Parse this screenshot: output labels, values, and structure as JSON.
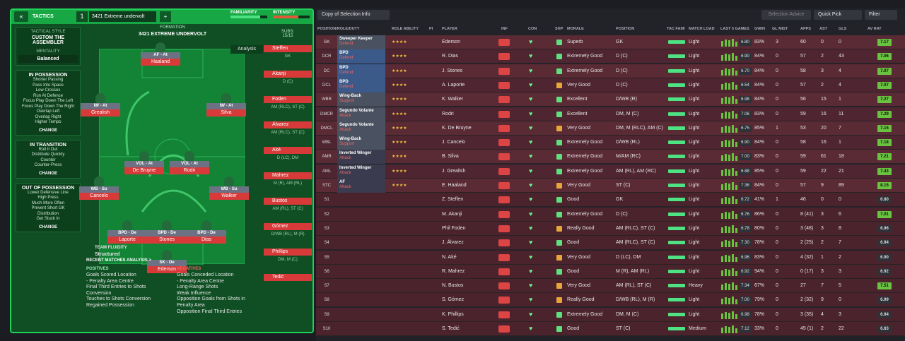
{
  "topbar": {
    "tactics": "TACTICS",
    "slot": "1",
    "name": "3421 Extreme undervolt",
    "familiarity": "FAMILIARITY",
    "intensity": "INTENSITY"
  },
  "side": {
    "style_h": "TACTICAL STYLE",
    "style": "CUSTOM THE ASSEMBLER",
    "ment_h": "MENTALITY",
    "ment": "Balanced",
    "poss_h": "IN POSSESSION",
    "poss": [
      "Shorter Passing",
      "Pass Into Space",
      "Low Crosses",
      "Run At Defence",
      "Focus Play Down The Left",
      "Focus Play Down The Right",
      "Overlap Left",
      "Overlap Right",
      "Higher Tempo"
    ],
    "trans_h": "IN TRANSITION",
    "trans": [
      "Roll It Out",
      "Distribute Quickly",
      "Counter",
      "Counter-Press"
    ],
    "oop_h": "OUT OF POSSESSION",
    "oop": [
      "Lower Defensive Line",
      "High Press",
      "Much More Often",
      "Prevent Short GK",
      "Distribution",
      "Get Stuck In"
    ],
    "change": "CHANGE"
  },
  "pitch": {
    "fh": "FORMATION",
    "fn": "3421 EXTREME UNDERVOLT",
    "analysis": "Analysis",
    "fluidity": "TEAM FLUIDITY",
    "fluid_v": "Structured",
    "nodes": [
      {
        "role": "AF - At",
        "name": "Haaland"
      },
      {
        "role": "IW - At",
        "name": "Grealish"
      },
      {
        "role": "IW - At",
        "name": "Silva"
      },
      {
        "role": "VOL - At",
        "name": "De Bruyne"
      },
      {
        "role": "VOL - At",
        "name": "Rodri"
      },
      {
        "role": "WB - Su",
        "name": "Cancelo"
      },
      {
        "role": "WB - Su",
        "name": "Walker"
      },
      {
        "role": "BPD - De",
        "name": "Laporte"
      },
      {
        "role": "BPD - De",
        "name": "Stones"
      },
      {
        "role": "BPD - De",
        "name": "Dias"
      },
      {
        "role": "SK - De",
        "name": "Ederson"
      }
    ]
  },
  "subs": {
    "label": "SUBS:",
    "count": "15/15",
    "list": [
      {
        "n": "Steffen",
        "p": "GK"
      },
      {
        "n": "Akanji",
        "p": "D (C)"
      },
      {
        "n": "Foden",
        "p": "AM (RLC), ST (C)"
      },
      {
        "n": "Álvarez",
        "p": "AM (RLC), ST (C)"
      },
      {
        "n": "Aké",
        "p": "D (LC), DM"
      },
      {
        "n": "Mahrez",
        "p": "M (R), AM (RL)"
      },
      {
        "n": "Bustos",
        "p": "AM (RL), ST (C)"
      },
      {
        "n": "Gómez",
        "p": "D/WB (RL), M (R)"
      },
      {
        "n": "Phillips",
        "p": "DM, M (C)"
      },
      {
        "n": "Tedić",
        "p": ""
      }
    ]
  },
  "analysis": {
    "title": "RECENT MATCHES ANALYSIS >",
    "pos_h": "POSITIVES",
    "neg_h": "NEGATIVES",
    "pos": [
      "Goals Scored Location",
      "- Penalty Area Centre",
      "Final Third Entries to Shots Conversion",
      "Touches to Shots Conversion",
      "Regained Possession"
    ],
    "neg": [
      "Goals Conceded Location",
      "- Penalty Area Centre",
      "Long-Range Shots",
      "Weak Influence",
      "Opposition Goals from Shots in Penalty Area",
      "Opposition Final Third Entries"
    ]
  },
  "right_top": {
    "copy": "Copy of Selection Info",
    "advice": "Selection Advice",
    "quick": "Quick Pick",
    "filter": "Filter"
  },
  "headers": [
    "POSITION/ROLE/DUTY",
    "ROLE ABILITY",
    "PI",
    "PLAYER",
    "INF",
    "CON",
    "SHP",
    "MORALE",
    "POSITION",
    "TAC FAMI",
    "MATCH LOAD",
    "LAST 5 GAMES",
    "GWIN",
    "GL MIST",
    "APPS",
    "AST",
    "GLS",
    "AV RAT"
  ],
  "rows": [
    {
      "slot": "GK",
      "role": "Sweeper Keeper",
      "duty": "Defend",
      "player": "Ederson",
      "morale": "Superb",
      "pos": "GK",
      "load": "Light",
      "rat": "6.80",
      "gwin": "83%",
      "glm": "3",
      "apps": "60",
      "ast": "0",
      "gls": "0",
      "av": "7.17"
    },
    {
      "slot": "DCR",
      "role": "BPD",
      "duty": "Defend",
      "player": "R. Dias",
      "morale": "Extremely Good",
      "pos": "D (C)",
      "load": "Light",
      "rat": "6.90",
      "gwin": "84%",
      "glm": "0",
      "apps": "57",
      "ast": "2",
      "gls": "43",
      "av": "7.06"
    },
    {
      "slot": "DC",
      "role": "BPD",
      "duty": "Defend",
      "player": "J. Stones",
      "morale": "Extremely Good",
      "pos": "D (C)",
      "load": "Light",
      "rat": "6.70",
      "gwin": "84%",
      "glm": "0",
      "apps": "58",
      "ast": "3",
      "gls": "4",
      "av": "7.07"
    },
    {
      "slot": "DCL",
      "role": "BPD",
      "duty": "Defend",
      "player": "A. Laporte",
      "morale": "Very Good",
      "pos": "D (C)",
      "load": "Light",
      "rat": "6.54",
      "gwin": "84%",
      "glm": "0",
      "apps": "57",
      "ast": "2",
      "gls": "4",
      "av": "7.07"
    },
    {
      "slot": "WBR",
      "role": "Wing-Back",
      "duty": "Support",
      "player": "K. Walker",
      "morale": "Excellent",
      "pos": "D/WB (R)",
      "load": "Light",
      "rat": "6.98",
      "gwin": "84%",
      "glm": "0",
      "apps": "56",
      "ast": "15",
      "gls": "1",
      "av": "7.27"
    },
    {
      "slot": "DMCR",
      "role": "Segundo Volante",
      "duty": "Attack",
      "player": "Rodri",
      "morale": "Excellent",
      "pos": "DM, M (C)",
      "load": "Light",
      "rat": "7.06",
      "gwin": "83%",
      "glm": "0",
      "apps": "59",
      "ast": "16",
      "gls": "11",
      "av": "7.29"
    },
    {
      "slot": "DMCL",
      "role": "Segundo Volante",
      "duty": "Attack",
      "player": "K. De Bruyne",
      "morale": "Very Good",
      "pos": "DM, M (RLC), AM (C)",
      "load": "Light",
      "rat": "6.75",
      "gwin": "85%",
      "glm": "1",
      "apps": "53",
      "ast": "20",
      "gls": "7",
      "av": "7.15"
    },
    {
      "slot": "WBL",
      "role": "Wing-Back",
      "duty": "Support",
      "player": "J. Cancelo",
      "morale": "Extremely Good",
      "pos": "D/WB (RL)",
      "load": "Light",
      "rat": "6.90",
      "gwin": "84%",
      "glm": "0",
      "apps": "58",
      "ast": "16",
      "gls": "1",
      "av": "7.18"
    },
    {
      "slot": "AMR",
      "role": "Inverted Winger",
      "duty": "Attack",
      "player": "B. Silva",
      "morale": "Extremely Good",
      "pos": "M/AM (RC)",
      "load": "Light",
      "rat": "7.00",
      "gwin": "83%",
      "glm": "0",
      "apps": "59",
      "ast": "61",
      "gls": "18",
      "av": "7.21"
    },
    {
      "slot": "AML",
      "role": "Inverted Winger",
      "duty": "Attack",
      "player": "J. Grealish",
      "morale": "Extremely Good",
      "pos": "AM (RL), AM (RC)",
      "load": "Light",
      "rat": "6.88",
      "gwin": "85%",
      "glm": "0",
      "apps": "59",
      "ast": "22",
      "gls": "21",
      "av": "7.43"
    },
    {
      "slot": "STC",
      "role": "AF",
      "duty": "Attack",
      "player": "E. Haaland",
      "morale": "Very Good",
      "pos": "ST (C)",
      "load": "Light",
      "rat": "7.36",
      "gwin": "84%",
      "glm": "0",
      "apps": "57",
      "ast": "9",
      "gls": "89",
      "av": "8.15"
    },
    {
      "slot": "S1",
      "role": "",
      "duty": "",
      "player": "Z. Steffen",
      "morale": "Good",
      "pos": "GK",
      "load": "Light",
      "rat": "6.72",
      "gwin": "41%",
      "glm": "1",
      "apps": "46",
      "ast": "0",
      "gls": "0",
      "av": "6.80"
    },
    {
      "slot": "S2",
      "role": "",
      "duty": "",
      "player": "M. Akanji",
      "morale": "Extremely Good",
      "pos": "D (C)",
      "load": "Light",
      "rat": "6.76",
      "gwin": "86%",
      "glm": "0",
      "apps": "8 (41)",
      "ast": "3",
      "gls": "6",
      "av": "7.01"
    },
    {
      "slot": "S3",
      "role": "",
      "duty": "",
      "player": "Phil Foden",
      "morale": "Really Good",
      "pos": "AM (RLC), ST (C)",
      "load": "Light",
      "rat": "6.78",
      "gwin": "80%",
      "glm": "0",
      "apps": "3 (48)",
      "ast": "3",
      "gls": "8",
      "av": "6.96"
    },
    {
      "slot": "S4",
      "role": "",
      "duty": "",
      "player": "J. Álvarez",
      "morale": "Good",
      "pos": "AM (RLC), ST (C)",
      "load": "Light",
      "rat": "7.30",
      "gwin": "78%",
      "glm": "0",
      "apps": "2 (25)",
      "ast": "2",
      "gls": "7",
      "av": "6.94"
    },
    {
      "slot": "S5",
      "role": "",
      "duty": "",
      "player": "N. Aké",
      "morale": "Very Good",
      "pos": "D (LC), DM",
      "load": "Light",
      "rat": "6.96",
      "gwin": "83%",
      "glm": "0",
      "apps": "4 (32)",
      "ast": "1",
      "gls": "2",
      "av": "6.90"
    },
    {
      "slot": "S6",
      "role": "",
      "duty": "",
      "player": "R. Mahrez",
      "morale": "Good",
      "pos": "M (R), AM (RL)",
      "load": "Light",
      "rat": "6.92",
      "gwin": "94%",
      "glm": "0",
      "apps": "0 (17)",
      "ast": "3",
      "gls": "3",
      "av": "6.92"
    },
    {
      "slot": "S7",
      "role": "",
      "duty": "",
      "player": "N. Bustos",
      "morale": "Very Good",
      "pos": "AM (RL), ST (C)",
      "load": "Heavy",
      "rat": "7.34",
      "gwin": "67%",
      "glm": "0",
      "apps": "27",
      "ast": "7",
      "gls": "5",
      "av": "7.51"
    },
    {
      "slot": "S8",
      "role": "",
      "duty": "",
      "player": "S. Gómez",
      "morale": "Really Good",
      "pos": "D/WB (RL), M (R)",
      "load": "Light",
      "rat": "7.00",
      "gwin": "79%",
      "glm": "0",
      "apps": "2 (32)",
      "ast": "9",
      "gls": "0",
      "av": "6.99"
    },
    {
      "slot": "S9",
      "role": "",
      "duty": "",
      "player": "K. Phillips",
      "morale": "Extremely Good",
      "pos": "DM, M (C)",
      "load": "Light",
      "rat": "6.98",
      "gwin": "78%",
      "glm": "0",
      "apps": "3 (35)",
      "ast": "4",
      "gls": "3",
      "av": "6.94"
    },
    {
      "slot": "S10",
      "role": "",
      "duty": "",
      "player": "S. Tedić",
      "morale": "Good",
      "pos": "ST (C)",
      "load": "Medium",
      "rat": "7.12",
      "gwin": "33%",
      "glm": "0",
      "apps": "45 (1)",
      "ast": "2",
      "gls": "22",
      "av": "6.83"
    }
  ]
}
